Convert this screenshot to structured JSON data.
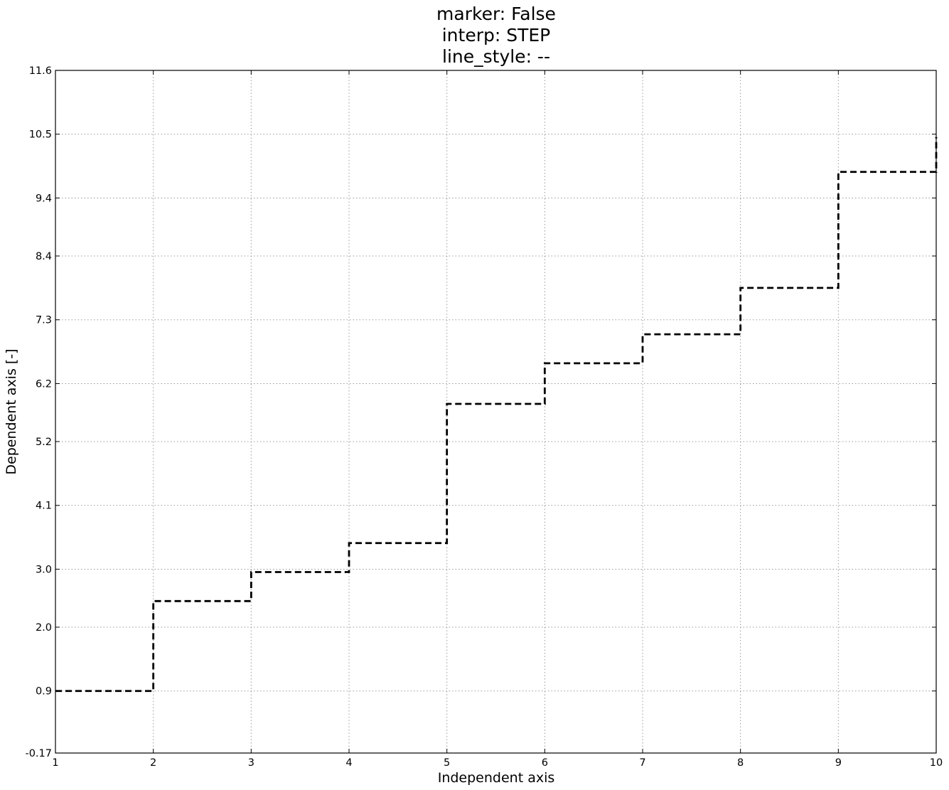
{
  "chart_data": {
    "type": "line",
    "interpolation": "step-post",
    "title_lines": [
      "marker: False",
      "interp: STEP",
      "line_style: --"
    ],
    "xlabel": "Independent axis",
    "ylabel": "Dependent axis [-]",
    "xlim": [
      1,
      10
    ],
    "ylim": [
      -0.17,
      11.6
    ],
    "x_ticks": [
      1,
      2,
      3,
      4,
      5,
      6,
      7,
      8,
      9,
      10
    ],
    "x_tick_labels": [
      "1",
      "2",
      "3",
      "4",
      "5",
      "6",
      "7",
      "8",
      "9",
      "10"
    ],
    "y_ticks": [
      -0.17,
      0.9,
      2.0,
      3.0,
      4.1,
      5.2,
      6.2,
      7.3,
      8.4,
      9.4,
      10.5,
      11.6
    ],
    "y_tick_labels": [
      "-0.17",
      "0.9",
      "2.0",
      "3.0",
      "4.1",
      "5.2",
      "6.2",
      "7.3",
      "8.4",
      "9.4",
      "10.5",
      "11.6"
    ],
    "grid": true,
    "series": [
      {
        "x": [
          1,
          2,
          3,
          4,
          5,
          6,
          7,
          8,
          9,
          10
        ],
        "y": [
          0.9,
          2.45,
          2.95,
          3.45,
          5.85,
          6.55,
          7.05,
          7.85,
          9.85,
          10.45
        ],
        "color": "#000000",
        "line_style": "--",
        "marker": false
      }
    ]
  }
}
